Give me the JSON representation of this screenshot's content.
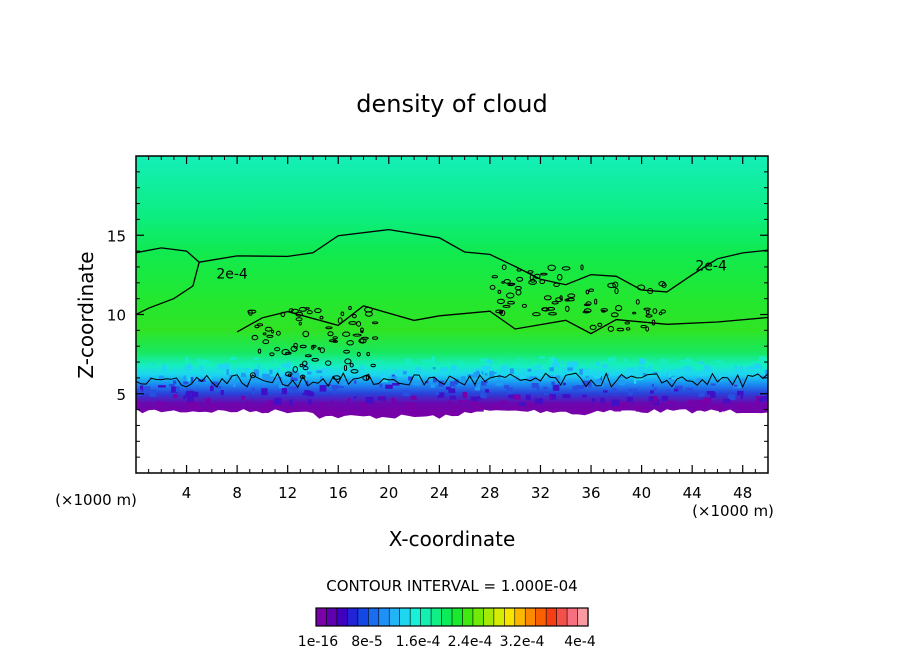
{
  "chart_data": {
    "type": "heatmap",
    "title": "density of cloud",
    "xlabel": "X-coordinate",
    "ylabel": "Z-coordinate",
    "x_unit_label_left": "(×1000 m)",
    "x_unit_label_right": "(×1000 m)",
    "xlim": [
      0,
      50
    ],
    "ylim": [
      0,
      20
    ],
    "x_ticks": [
      4,
      8,
      12,
      16,
      20,
      24,
      28,
      32,
      36,
      40,
      44,
      48
    ],
    "y_ticks": [
      5,
      10,
      15
    ],
    "contour_interval_text": "CONTOUR INTERVAL = 1.000E-04",
    "contour_labels": [
      {
        "text": "2e-4",
        "x": 7.6,
        "z": 12.6
      },
      {
        "text": "2e-4",
        "x": 45.5,
        "z": 13.1
      }
    ],
    "colorbar": {
      "colors": [
        "#7a00a8",
        "#5e00b0",
        "#4000c0",
        "#2222d6",
        "#1448e6",
        "#1a6cf0",
        "#1f90f5",
        "#22b4f5",
        "#1ed6f0",
        "#18f0d8",
        "#14f0b0",
        "#10ee86",
        "#0cec5a",
        "#18ea2e",
        "#40ea10",
        "#72ea08",
        "#a4ea06",
        "#d6ec04",
        "#f8e400",
        "#fcb800",
        "#fc8a00",
        "#f86000",
        "#f43e14",
        "#f4504a",
        "#f87080",
        "#f89aa0"
      ],
      "tick_labels": [
        "1e-16",
        "8e-5",
        "1.6e-4",
        "2.4e-4",
        "3.2e-4",
        "4e-4"
      ],
      "range": [
        1e-16,
        0.0004
      ]
    }
  }
}
